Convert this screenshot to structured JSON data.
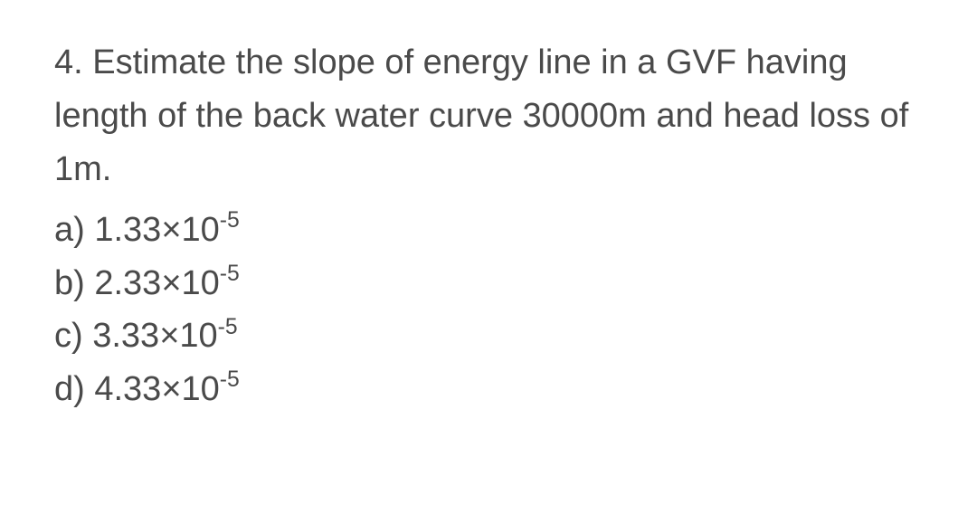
{
  "question": {
    "number": "4.",
    "text": "Estimate the slope of energy line in a GVF having length of the back water curve 30000m and head loss of 1m."
  },
  "options": [
    {
      "label": "a)",
      "mantissa": "1.33",
      "times": "×10",
      "exp": "-5"
    },
    {
      "label": "b)",
      "mantissa": "2.33",
      "times": "×10",
      "exp": "-5"
    },
    {
      "label": "c)",
      "mantissa": "3.33",
      "times": "×10",
      "exp": "-5"
    },
    {
      "label": "d)",
      "mantissa": "4.33",
      "times": "×10",
      "exp": "-5"
    }
  ],
  "style": {
    "text_color": "#4a4a4a",
    "background_color": "#ffffff",
    "font_size": 38,
    "line_height": 1.55
  }
}
